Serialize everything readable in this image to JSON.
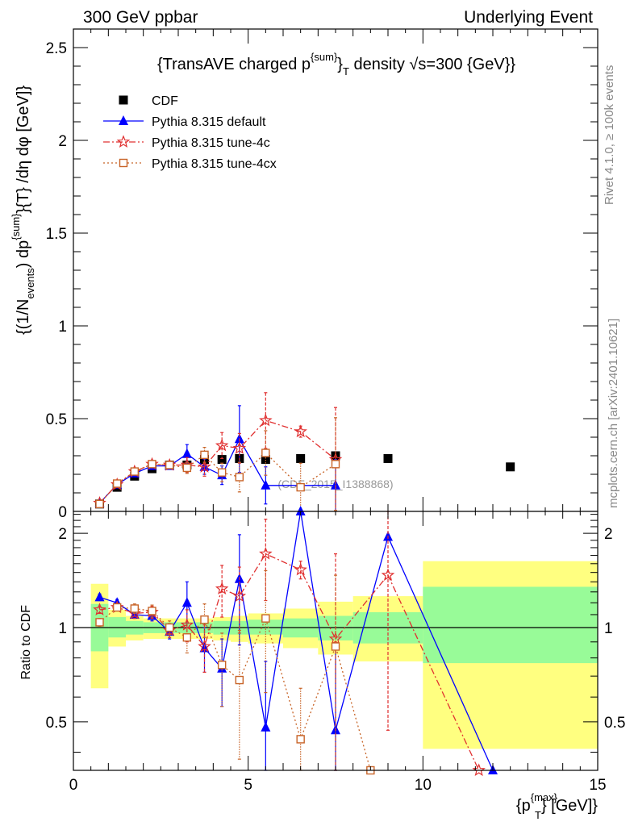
{
  "header": {
    "left": "300 GeV ppbar",
    "right": "Underlying Event"
  },
  "side_labels": {
    "rivet": "Rivet 4.1.0, ≥ 100k events",
    "mcplots": "mcplots.cern.ch [arXiv:2401.10621]"
  },
  "chart_data": [
    {
      "type": "scatter",
      "panel": "main",
      "title": "{TransAVE charged p^{sum}_T density √s=300 {GeV}}",
      "ylabel": "{(1/N_events) dp^{sum}_T} /dη dφ [GeV]}",
      "xlim": [
        0,
        15
      ],
      "ylim": [
        0,
        2.6
      ],
      "yticks": [
        0,
        0.5,
        1,
        1.5,
        2,
        2.5
      ],
      "watermark": "(CDF_2015_I1388868)",
      "legend_position": "top-left",
      "series": [
        {
          "name": "CDF",
          "color": "#000000",
          "marker": "square",
          "x": [
            0.75,
            1.25,
            1.75,
            2.25,
            2.75,
            3.25,
            3.75,
            4.25,
            4.75,
            5.5,
            6.5,
            7.5,
            9.0,
            12.5
          ],
          "y": [
            0.04,
            0.13,
            0.19,
            0.23,
            0.25,
            0.25,
            0.28,
            0.28,
            0.285,
            0.28,
            0.285,
            0.3,
            0.285,
            0.24
          ],
          "yerr": [
            0.005,
            0.005,
            0.005,
            0.005,
            0.005,
            0.005,
            0.005,
            0.005,
            0.005,
            0.005,
            0.01,
            0.01,
            0.01,
            0.01
          ]
        },
        {
          "name": "Pythia 8.315 default",
          "color": "#0000ff",
          "marker": "triangle",
          "linestyle": "solid",
          "x": [
            0.75,
            1.25,
            1.75,
            2.25,
            2.75,
            3.25,
            3.75,
            4.25,
            4.75,
            5.5,
            7.5
          ],
          "y": [
            0.045,
            0.145,
            0.205,
            0.245,
            0.245,
            0.31,
            0.24,
            0.195,
            0.39,
            0.14,
            0.14
          ],
          "yerr": [
            0.005,
            0.01,
            0.01,
            0.015,
            0.01,
            0.05,
            0.04,
            0.05,
            0.18,
            0.1,
            0.14
          ]
        },
        {
          "name": "Pythia 8.315 tune-4c",
          "color": "#e03030",
          "marker": "star",
          "linestyle": "dashdot",
          "x": [
            0.75,
            1.25,
            1.75,
            2.25,
            2.75,
            3.25,
            3.75,
            4.25,
            4.75,
            5.5,
            6.5,
            7.5
          ],
          "y": [
            0.045,
            0.145,
            0.215,
            0.255,
            0.25,
            0.25,
            0.24,
            0.355,
            0.34,
            0.49,
            0.43,
            0.28
          ],
          "yerr": [
            0.005,
            0.01,
            0.01,
            0.015,
            0.01,
            0.04,
            0.05,
            0.07,
            0.08,
            0.15,
            0.03,
            0.28
          ]
        },
        {
          "name": "Pythia 8.315 tune-4cx",
          "color": "#c86428",
          "marker": "open-square",
          "linestyle": "dotted",
          "x": [
            0.75,
            1.25,
            1.75,
            2.25,
            2.75,
            3.25,
            3.75,
            4.25,
            4.75,
            5.5,
            6.5,
            7.5
          ],
          "y": [
            0.04,
            0.15,
            0.215,
            0.255,
            0.25,
            0.235,
            0.305,
            0.21,
            0.185,
            0.315,
            0.13,
            0.255
          ],
          "yerr": [
            0.005,
            0.01,
            0.01,
            0.015,
            0.01,
            0.03,
            0.04,
            0.05,
            0.08,
            0.12,
            0.13,
            0.25
          ]
        }
      ]
    },
    {
      "type": "scatter",
      "panel": "ratio",
      "ylabel": "Ratio to CDF",
      "xlabel": "{p_T^{max}} [GeV]}",
      "xlim": [
        0,
        15
      ],
      "ylim": [
        0.35,
        2.35
      ],
      "yscale": "log",
      "yticks": [
        0.5,
        1,
        2
      ],
      "xticks": [
        0,
        5,
        10,
        15
      ],
      "reference_line": 1,
      "bands": {
        "edges": [
          0.5,
          1.0,
          1.5,
          2.0,
          2.5,
          3.0,
          3.5,
          4.0,
          4.5,
          5.0,
          6.0,
          7.0,
          8.0,
          10.0,
          15.0
        ],
        "inner_low": [
          0.84,
          0.93,
          0.95,
          0.96,
          0.96,
          0.96,
          0.96,
          0.95,
          0.95,
          0.95,
          0.93,
          0.91,
          0.89,
          0.77
        ],
        "inner_high": [
          1.19,
          1.08,
          1.05,
          1.04,
          1.04,
          1.04,
          1.04,
          1.05,
          1.05,
          1.06,
          1.07,
          1.09,
          1.12,
          1.35
        ],
        "outer_low": [
          0.64,
          0.87,
          0.91,
          0.92,
          0.92,
          0.92,
          0.92,
          0.91,
          0.9,
          0.89,
          0.86,
          0.82,
          0.78,
          0.41
        ],
        "outer_high": [
          1.38,
          1.14,
          1.09,
          1.07,
          1.07,
          1.07,
          1.07,
          1.08,
          1.09,
          1.11,
          1.15,
          1.21,
          1.26,
          1.63
        ],
        "inner_color": "#98fb98",
        "outer_color": "#ffff80"
      },
      "series": [
        {
          "name": "Pythia 8.315 default",
          "color": "#0000ff",
          "marker": "triangle",
          "linestyle": "solid",
          "x": [
            0.75,
            1.25,
            1.75,
            2.25,
            2.75,
            3.25,
            3.75,
            4.25,
            4.75,
            5.5,
            6.5,
            7.5,
            9.0,
            12.0
          ],
          "y": [
            1.25,
            1.2,
            1.1,
            1.09,
            0.97,
            1.2,
            0.86,
            0.74,
            1.43,
            0.48,
            2.35,
            0.47,
            1.95,
            0.34
          ],
          "yerr": [
            0.03,
            0.03,
            0.03,
            0.04,
            0.05,
            0.2,
            0.14,
            0.18,
            0.55,
            0.3,
            0,
            0.4,
            0,
            0
          ]
        },
        {
          "name": "Pythia 8.315 tune-4c",
          "color": "#e03030",
          "marker": "star",
          "linestyle": "dashdot",
          "x": [
            0.75,
            1.25,
            1.75,
            2.25,
            2.75,
            3.25,
            3.75,
            4.25,
            4.75,
            5.5,
            6.5,
            7.5,
            9.0,
            11.6
          ],
          "y": [
            1.14,
            1.16,
            1.11,
            1.12,
            0.98,
            1.02,
            0.87,
            1.33,
            1.26,
            1.72,
            1.53,
            0.92,
            1.47,
            0.34
          ],
          "yerr": [
            0.03,
            0.03,
            0.04,
            0.05,
            0.05,
            0.12,
            0.15,
            0.25,
            0.3,
            0.5,
            0.1,
            0.8,
            1.0,
            0
          ]
        },
        {
          "name": "Pythia 8.315 tune-4cx",
          "color": "#c86428",
          "marker": "open-square",
          "linestyle": "dotted",
          "x": [
            0.75,
            1.25,
            1.75,
            2.25,
            2.75,
            3.25,
            3.75,
            4.25,
            4.75,
            5.5,
            6.5,
            7.5,
            8.5
          ],
          "y": [
            1.04,
            1.16,
            1.15,
            1.13,
            1.0,
            0.93,
            1.06,
            0.76,
            0.68,
            1.07,
            0.44,
            0.87,
            0.34
          ],
          "yerr": [
            0.03,
            0.03,
            0.04,
            0.05,
            0.05,
            0.1,
            0.13,
            0.2,
            0.3,
            0.45,
            0.2,
            0.6,
            0
          ]
        }
      ]
    }
  ]
}
